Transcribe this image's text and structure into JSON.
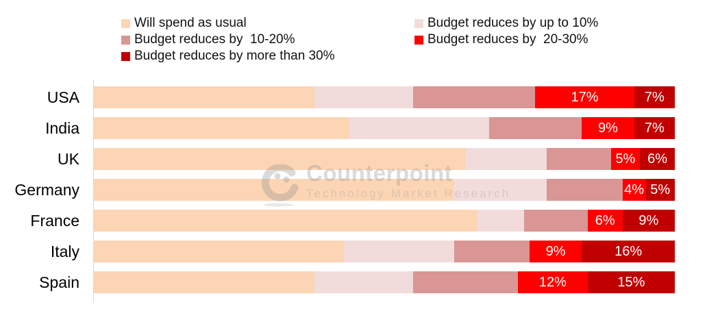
{
  "legend": {
    "columns": [
      {
        "items": [
          {
            "label": "Will spend as usual",
            "color": "#FCD5B4"
          },
          {
            "label": "Budget reduces by  10-20%",
            "color": "#D99694"
          },
          {
            "label": "Budget reduces by more than 30%",
            "color": "#C00000"
          }
        ]
      },
      {
        "items": [
          {
            "label": "Budget reduces by up to 10%",
            "color": "#F2DCDB"
          },
          {
            "label": "Budget reduces by  20-30%",
            "color": "#FF0000"
          }
        ]
      }
    ]
  },
  "watermark": {
    "title": "Counterpoint",
    "subtitle": "Technology Market Research"
  },
  "chart_data": {
    "type": "bar",
    "orientation": "horizontal",
    "stacked": true,
    "units": "percent",
    "value_suffix": "%",
    "xlim": [
      0,
      100
    ],
    "grid": false,
    "legend_position": "top",
    "axis_style": "left vertical line only, no tick labels",
    "categories": [
      "USA",
      "India",
      "UK",
      "Germany",
      "France",
      "Italy",
      "Spain"
    ],
    "series": [
      {
        "name": "Will spend as usual",
        "color": "#FCD5B4",
        "show_labels": false,
        "values": [
          38,
          44,
          64,
          62,
          66,
          43,
          38
        ]
      },
      {
        "name": "Budget reduces by up to 10%",
        "color": "#F2DCDB",
        "show_labels": false,
        "values": [
          17,
          24,
          14,
          16,
          8,
          19,
          17
        ]
      },
      {
        "name": "Budget reduces by  10-20%",
        "color": "#D99694",
        "show_labels": false,
        "values": [
          21,
          16,
          11,
          13,
          11,
          13,
          18
        ]
      },
      {
        "name": "Budget reduces by  20-30%",
        "color": "#FF0000",
        "show_labels": true,
        "values": [
          17,
          9,
          5,
          4,
          6,
          9,
          12
        ]
      },
      {
        "name": "Budget reduces by more than 30%",
        "color": "#C00000",
        "show_labels": true,
        "values": [
          7,
          7,
          6,
          5,
          9,
          16,
          15
        ]
      }
    ],
    "data_label_color": "#FFFFFF"
  }
}
